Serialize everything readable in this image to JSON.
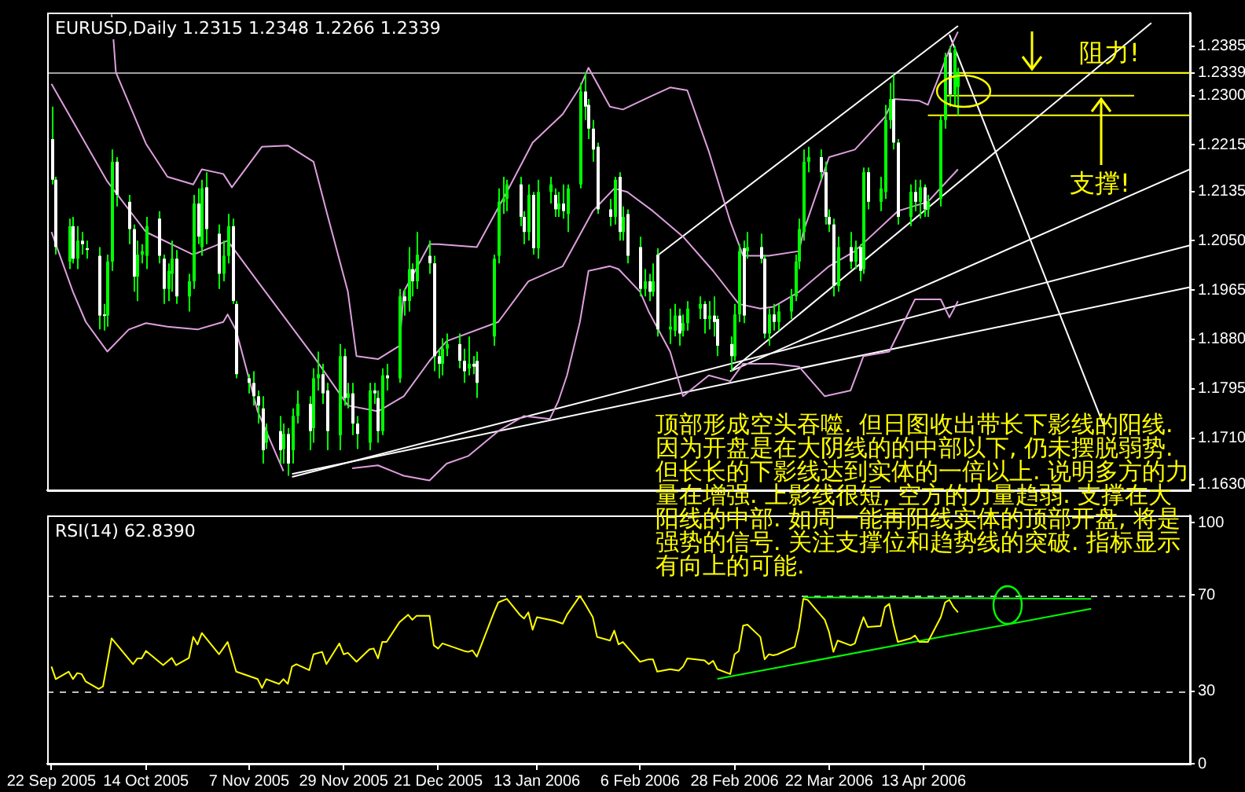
{
  "chart_data": [
    {
      "type": "candlestick",
      "title": "EURUSD,Daily 1.2315 1.2348 1.2266 1.2339",
      "color": "#00ff00",
      "legend": false,
      "tick_labels": "y",
      "xlim": [
        "2005-09-21",
        "2006-06-14"
      ],
      "ylim": [
        1.162,
        1.2443
      ],
      "yticks": [
        1.2385,
        1.2339,
        {
          "value": 1.23,
          "label": "1.2300"
        },
        1.2215,
        1.2135,
        {
          "value": 1.205,
          "label": "1.2050"
        },
        1.1965,
        {
          "value": 1.188,
          "label": "1.1880"
        },
        1.1795,
        {
          "value": 1.171,
          "label": "1.1710"
        },
        {
          "value": 1.163,
          "label": "1.1630"
        }
      ],
      "x": [
        "2005-09-22",
        "2005-09-23",
        "2005-09-26",
        "2005-09-27",
        "2005-09-28",
        "2005-09-29",
        "2005-09-30",
        "2005-10-03",
        "2005-10-04",
        "2005-10-05",
        "2005-10-06",
        "2005-10-07",
        "2005-10-10",
        "2005-10-11",
        "2005-10-12",
        "2005-10-13",
        "2005-10-14",
        "2005-10-17",
        "2005-10-18",
        "2005-10-19",
        "2005-10-20",
        "2005-10-21",
        "2005-10-24",
        "2005-10-25",
        "2005-10-26",
        "2005-10-27",
        "2005-10-28",
        "2005-10-31",
        "2005-11-01",
        "2005-11-02",
        "2005-11-03",
        "2005-11-04",
        "2005-11-07",
        "2005-11-08",
        "2005-11-09",
        "2005-11-10",
        "2005-11-11",
        "2005-11-14",
        "2005-11-15",
        "2005-11-16",
        "2005-11-17",
        "2005-11-18",
        "2005-11-21",
        "2005-11-22",
        "2005-11-23",
        "2005-11-24",
        "2005-11-25",
        "2005-11-28",
        "2005-11-29",
        "2005-11-30",
        "2005-12-01",
        "2005-12-02",
        "2005-12-05",
        "2005-12-06",
        "2005-12-07",
        "2005-12-08",
        "2005-12-09",
        "2005-12-12",
        "2005-12-13",
        "2005-12-14",
        "2005-12-15",
        "2005-12-16",
        "2005-12-19",
        "2005-12-20",
        "2005-12-21",
        "2005-12-22",
        "2005-12-23",
        "2005-12-26",
        "2005-12-27",
        "2005-12-28",
        "2005-12-29",
        "2005-12-30",
        "2006-01-03",
        "2006-01-04",
        "2006-01-05",
        "2006-01-06",
        "2006-01-09",
        "2006-01-10",
        "2006-01-11",
        "2006-01-12",
        "2006-01-13",
        "2006-01-16",
        "2006-01-17",
        "2006-01-18",
        "2006-01-19",
        "2006-01-20",
        "2006-01-23",
        "2006-01-24",
        "2006-01-25",
        "2006-01-26",
        "2006-01-27",
        "2006-01-30",
        "2006-01-31",
        "2006-02-01",
        "2006-02-02",
        "2006-02-03",
        "2006-02-06",
        "2006-02-07",
        "2006-02-08",
        "2006-02-09",
        "2006-02-10",
        "2006-02-13",
        "2006-02-14",
        "2006-02-15",
        "2006-02-16",
        "2006-02-17",
        "2006-02-20",
        "2006-02-21",
        "2006-02-22",
        "2006-02-23",
        "2006-02-24",
        "2006-02-27",
        "2006-02-28",
        "2006-03-01",
        "2006-03-02",
        "2006-03-03",
        "2006-03-06",
        "2006-03-07",
        "2006-03-08",
        "2006-03-09",
        "2006-03-10",
        "2006-03-13",
        "2006-03-14",
        "2006-03-15",
        "2006-03-16",
        "2006-03-17",
        "2006-03-20",
        "2006-03-21",
        "2006-03-22",
        "2006-03-23",
        "2006-03-24",
        "2006-03-27",
        "2006-03-28",
        "2006-03-29",
        "2006-03-30",
        "2006-03-31",
        "2006-04-03",
        "2006-04-04",
        "2006-04-05",
        "2006-04-06",
        "2006-04-07",
        "2006-04-10",
        "2006-04-11",
        "2006-04-12",
        "2006-04-13",
        "2006-04-14",
        "2006-04-17",
        "2006-04-18",
        "2006-04-19",
        "2006-04-20",
        "2006-04-21"
      ],
      "colors": [
        "#ffffff",
        "#ffffff",
        "#00ff00",
        "#ffffff",
        "#00ff00",
        "#ffffff",
        "#ffffff",
        "#ffffff",
        "#ffffff",
        "#00ff00",
        "#00ff00",
        "#ffffff",
        "#ffffff",
        "#ffffff",
        "#00ff00",
        "#00ff00",
        "#00ff00",
        "#ffffff",
        "#ffffff",
        "#00ff00",
        "#00ff00",
        "#ffffff",
        "#00ff00",
        "#00ff00",
        "#ffffff",
        "#00ff00",
        "#ffffff",
        "#ffffff",
        "#00ff00",
        "#00ff00",
        "#ffffff",
        "#ffffff",
        "#ffffff",
        "#ffffff",
        "#ffffff",
        "#ffffff",
        "#00ff00",
        "#ffffff",
        "#00ff00",
        "#ffffff",
        "#00ff00",
        "#00ff00",
        "#ffffff",
        "#00ff00",
        "#00ff00",
        "#ffffff",
        "#ffffff",
        "#00ff00",
        "#ffffff",
        "#00ff00",
        "#ffffff",
        "#ffffff",
        "#00ff00",
        "#ffffff",
        "#ffffff",
        "#00ff00",
        "#ffffff",
        "#00ff00",
        "#ffffff",
        "#00ff00",
        "#ffffff",
        "#00ff00",
        "#ffffff",
        "#ffffff",
        "#ffffff",
        "#00ff00",
        "#00ff00",
        "#ffffff",
        "#ffffff",
        "#00ff00",
        "#ffffff",
        "#ffffff",
        "#00ff00",
        "#00ff00",
        "#00ff00",
        "#00ff00",
        "#ffffff",
        "#ffffff",
        "#00ff00",
        "#ffffff",
        "#00ff00",
        "#00ff00",
        "#ffffff",
        "#00ff00",
        "#ffffff",
        "#00ff00",
        "#00ff00",
        "#ffffff",
        "#ffffff",
        "#ffffff",
        "#ffffff",
        "#ffffff",
        "#00ff00",
        "#ffffff",
        "#00ff00",
        "#ffffff",
        "#ffffff",
        "#00ff00",
        "#ffffff",
        "#00ff00",
        "#ffffff",
        "#00ff00",
        "#00ff00",
        "#ffffff",
        "#00ff00",
        "#00ff00",
        "#00ff00",
        "#ffffff",
        "#00ff00",
        "#ffffff",
        "#ffffff",
        "#ffffff",
        "#00ff00",
        "#00ff00",
        "#ffffff",
        "#00ff00",
        "#ffffff",
        "#ffffff",
        "#00ff00",
        "#ffffff",
        "#00ff00",
        "#00ff00",
        "#00ff00",
        "#00ff00",
        "#00ff00",
        "#00ff00",
        "#ffffff",
        "#ffffff",
        "#ffffff",
        "#ffffff",
        "#00ff00",
        "#ffffff",
        "#00ff00",
        "#ffffff",
        "#00ff00",
        "#ffffff",
        "#00ff00",
        "#00ff00",
        "#00ff00",
        "#ffffff",
        "#ffffff",
        "#00ff00",
        "#ffffff",
        "#00ff00",
        "#ffffff",
        "#00ff00",
        "#00ff00",
        "#00ff00",
        "#ffffff",
        "#00ff00",
        "#00ff00"
      ],
      "ohlc": [
        [
          1.2225,
          1.2281,
          1.2147,
          1.2155
        ],
        [
          1.2155,
          1.216,
          1.2026,
          1.2039
        ],
        [
          1.2014,
          1.2088,
          1.2001,
          1.2075
        ],
        [
          1.2075,
          1.2091,
          1.2011,
          1.2019
        ],
        [
          1.2019,
          1.2075,
          1.2001,
          1.205
        ],
        [
          1.205,
          1.2065,
          1.2026,
          1.2044
        ],
        [
          1.2037,
          1.205,
          1.2019,
          1.2034
        ],
        [
          1.2024,
          1.2039,
          1.1897,
          1.1921
        ],
        [
          1.1923,
          1.1941,
          1.1895,
          1.1921
        ],
        [
          1.1921,
          1.2026,
          1.1902,
          1.2014
        ],
        [
          1.2014,
          1.2207,
          1.1998,
          1.2186
        ],
        [
          1.2186,
          1.2194,
          1.2109,
          1.2129
        ],
        [
          1.2117,
          1.2129,
          1.2044,
          1.207
        ],
        [
          1.207,
          1.2078,
          1.1962,
          1.1988
        ],
        [
          1.1988,
          1.205,
          1.1946,
          1.2026
        ],
        [
          1.2026,
          1.2044,
          1.2011,
          1.2032
        ],
        [
          1.2024,
          1.2091,
          1.2001,
          1.2075
        ],
        [
          1.2088,
          1.2101,
          1.2011,
          1.2024
        ],
        [
          1.2019,
          1.2026,
          1.1941,
          1.1967
        ],
        [
          1.1967,
          1.2011,
          1.1946,
          1.1998
        ],
        [
          1.1993,
          1.205,
          1.1962,
          1.2019
        ],
        [
          1.2019,
          1.2034,
          1.1941,
          1.1954
        ],
        [
          1.1954,
          1.1993,
          1.1928,
          1.198
        ],
        [
          1.198,
          1.2129,
          1.1967,
          1.2114
        ],
        [
          1.2114,
          1.214,
          1.2044,
          1.2057
        ],
        [
          1.2039,
          1.2155,
          1.2024,
          1.214
        ],
        [
          1.2142,
          1.2168,
          1.2044,
          1.207
        ],
        [
          1.2062,
          1.2078,
          1.1967,
          1.1993
        ],
        [
          1.1993,
          1.205,
          1.198,
          1.2024
        ],
        [
          1.2024,
          1.2096,
          1.2011,
          1.2075
        ],
        [
          1.2075,
          1.2088,
          1.1941,
          1.1946
        ],
        [
          1.1941,
          1.1946,
          1.1813,
          1.182
        ],
        [
          1.1813,
          1.182,
          1.1787,
          1.1805
        ],
        [
          1.1805,
          1.1825,
          1.1766,
          1.1782
        ],
        [
          1.1782,
          1.1792,
          1.1735,
          1.1766
        ],
        [
          1.1761,
          1.1782,
          1.1666,
          1.1689
        ],
        [
          1.1702,
          1.1735,
          1.1691,
          1.1722
        ],
        [
          1.1722,
          1.1748,
          1.1666,
          1.1689
        ],
        [
          1.1691,
          1.1735,
          1.1666,
          1.1717
        ],
        [
          1.1717,
          1.1727,
          1.1645,
          1.1666
        ],
        [
          1.1689,
          1.1761,
          1.1666,
          1.1748
        ],
        [
          1.1748,
          1.1792,
          1.1735,
          1.1769
        ],
        [
          1.1769,
          1.1782,
          1.1689,
          1.1722
        ],
        [
          1.1727,
          1.183,
          1.1702,
          1.1813
        ],
        [
          1.1813,
          1.1859,
          1.1792,
          1.182
        ],
        [
          1.182,
          1.1838,
          1.1769,
          1.1787
        ],
        [
          1.1792,
          1.1805,
          1.1689,
          1.1722
        ],
        [
          1.1715,
          1.1872,
          1.1689,
          1.1851
        ],
        [
          1.1851,
          1.1864,
          1.1766,
          1.1779
        ],
        [
          1.1779,
          1.1805,
          1.1761,
          1.1787
        ],
        [
          1.1787,
          1.1805,
          1.1715,
          1.1735
        ],
        [
          1.1735,
          1.1748,
          1.1691,
          1.1717
        ],
        [
          1.1702,
          1.1805,
          1.1689,
          1.1792
        ],
        [
          1.1792,
          1.1805,
          1.1769,
          1.1787
        ],
        [
          1.1779,
          1.1792,
          1.1702,
          1.1722
        ],
        [
          1.1722,
          1.183,
          1.1715,
          1.1818
        ],
        [
          1.1818,
          1.1838,
          1.1792,
          1.1813
        ],
        [
          1.1813,
          1.1967,
          1.1805,
          1.1954
        ],
        [
          1.1954,
          1.1967,
          1.1921,
          1.1946
        ],
        [
          1.1946,
          1.2039,
          1.1928,
          1.2001
        ],
        [
          1.2001,
          1.2011,
          1.1954,
          1.198
        ],
        [
          1.198,
          1.2065,
          1.1967,
          1.2026
        ],
        [
          1.2024,
          1.205,
          1.1993,
          1.2011
        ],
        [
          1.2011,
          1.2024,
          1.1825,
          1.1851
        ],
        [
          1.1851,
          1.1864,
          1.1813,
          1.1838
        ],
        [
          1.1838,
          1.1882,
          1.1818,
          1.1864
        ],
        [
          1.1864,
          1.189,
          1.1851,
          1.1872
        ],
        [
          1.1872,
          1.189,
          1.183,
          1.1843
        ],
        [
          1.1843,
          1.1864,
          1.1805,
          1.1825
        ],
        [
          1.183,
          1.1885,
          1.1818,
          1.1838
        ],
        [
          1.1838,
          1.1851,
          1.182,
          1.1833
        ],
        [
          1.1843,
          1.1859,
          1.1779,
          1.1805
        ],
        [
          1.1885,
          1.2026,
          1.1869,
          1.2019
        ],
        [
          1.2024,
          1.214,
          1.2011,
          1.2117
        ],
        [
          1.2117,
          1.216,
          1.2096,
          1.2122
        ],
        [
          1.2122,
          1.2155,
          1.2101,
          1.2147
        ],
        [
          1.2147,
          1.216,
          1.2075,
          1.2091
        ],
        [
          1.2091,
          1.2101,
          1.2044,
          1.2065
        ],
        [
          1.2065,
          1.2147,
          1.205,
          1.2129
        ],
        [
          1.2129,
          1.2134,
          1.2026,
          1.2037
        ],
        [
          1.2037,
          1.2155,
          1.2019,
          1.2134
        ],
        [
          1.2134,
          1.216,
          1.2114,
          1.2147
        ],
        [
          1.2129,
          1.214,
          1.2091,
          1.2104
        ],
        [
          1.2104,
          1.2134,
          1.2091,
          1.2114
        ],
        [
          1.2114,
          1.2147,
          1.2088,
          1.2101
        ],
        [
          1.2096,
          1.2147,
          1.2065,
          1.214
        ],
        [
          1.2147,
          1.2322,
          1.214,
          1.2307
        ],
        [
          1.2307,
          1.234,
          1.2258,
          1.2281
        ],
        [
          1.2284,
          1.2294,
          1.2225,
          1.2243
        ],
        [
          1.2243,
          1.2258,
          1.2186,
          1.2207
        ],
        [
          1.2212,
          1.2219,
          1.2096,
          1.2104
        ],
        [
          1.2104,
          1.2122,
          1.2075,
          1.2091
        ],
        [
          1.2091,
          1.216,
          1.2078,
          1.2155
        ],
        [
          1.216,
          1.2168,
          1.205,
          1.2065
        ],
        [
          1.2065,
          1.2109,
          1.205,
          1.2091
        ],
        [
          1.2096,
          1.2104,
          1.2011,
          1.2024
        ],
        [
          1.2039,
          1.2057,
          1.1954,
          1.1967
        ],
        [
          1.1967,
          1.2001,
          1.1954,
          1.198
        ],
        [
          1.198,
          1.1993,
          1.1946,
          1.1962
        ],
        [
          1.1962,
          1.2011,
          1.1954,
          1.198
        ],
        [
          1.2026,
          1.2037,
          1.1885,
          1.1897
        ],
        [
          1.1897,
          1.1933,
          1.1872,
          1.1902
        ],
        [
          1.1895,
          1.1941,
          1.1885,
          1.1921
        ],
        [
          1.1921,
          1.1933,
          1.1869,
          1.189
        ],
        [
          1.1895,
          1.1923,
          1.1885,
          1.1908
        ],
        [
          1.1908,
          1.1946,
          1.1895,
          1.1933
        ],
        [
          1.1933,
          1.1954,
          1.1915,
          1.1941
        ],
        [
          1.1941,
          1.1946,
          1.189,
          1.1915
        ],
        [
          1.1915,
          1.1946,
          1.1897,
          1.1921
        ],
        [
          1.1921,
          1.1954,
          1.1885,
          1.191
        ],
        [
          1.1915,
          1.1921,
          1.1851,
          1.1869
        ],
        [
          1.1872,
          1.1885,
          1.1825,
          1.1851
        ],
        [
          1.1851,
          1.1941,
          1.1843,
          1.1923
        ],
        [
          1.1923,
          1.2044,
          1.191,
          1.2032
        ],
        [
          1.2037,
          1.205,
          1.1908,
          1.1921
        ],
        [
          1.2032,
          1.2065,
          1.2019,
          1.2039
        ],
        [
          1.2039,
          1.2062,
          1.2011,
          1.2019
        ],
        [
          1.2019,
          1.2026,
          1.1882,
          1.189
        ],
        [
          1.189,
          1.1933,
          1.1869,
          1.1923
        ],
        [
          1.1923,
          1.1941,
          1.1895,
          1.191
        ],
        [
          1.191,
          1.1941,
          1.1895,
          1.1928
        ],
        [
          1.1928,
          1.1967,
          1.1915,
          1.1954
        ],
        [
          1.1954,
          1.2026,
          1.1946,
          1.2014
        ],
        [
          1.2014,
          1.2088,
          1.2001,
          1.207
        ],
        [
          1.2065,
          1.2207,
          1.205,
          1.2186
        ],
        [
          1.2186,
          1.2212,
          1.2168,
          1.2194
        ],
        [
          1.2194,
          1.2207,
          1.2155,
          1.2168
        ],
        [
          1.2168,
          1.2186,
          1.2078,
          1.2091
        ],
        [
          1.2091,
          1.2104,
          1.2065,
          1.2078
        ],
        [
          1.2078,
          1.2088,
          1.1954,
          1.1972
        ],
        [
          1.1972,
          1.2057,
          1.1962,
          1.2039
        ],
        [
          1.2039,
          1.2065,
          1.2001,
          1.2014
        ],
        [
          1.2014,
          1.205,
          1.2001,
          1.2039
        ],
        [
          1.2039,
          1.2044,
          1.198,
          1.1998
        ],
        [
          1.2001,
          1.2176,
          1.1993,
          1.2168
        ],
        [
          1.2168,
          1.2176,
          1.2104,
          1.2117
        ],
        [
          1.2117,
          1.216,
          1.2101,
          1.214
        ],
        [
          1.2134,
          1.2284,
          1.2122,
          1.2258
        ],
        [
          1.2258,
          1.2322,
          1.2243,
          1.2294
        ],
        [
          1.2294,
          1.2335,
          1.2207,
          1.2219
        ],
        [
          1.2219,
          1.2225,
          1.2078,
          1.2091
        ],
        [
          1.2091,
          1.2147,
          1.2075,
          1.2134
        ],
        [
          1.2134,
          1.2155,
          1.2101,
          1.2117
        ],
        [
          1.2117,
          1.2155,
          1.2088,
          1.2142
        ],
        [
          1.2142,
          1.2147,
          1.2091,
          1.2104
        ],
        [
          1.2104,
          1.2129,
          1.2091,
          1.2117
        ],
        [
          1.2122,
          1.2265,
          1.2109,
          1.2258
        ],
        [
          1.2258,
          1.2374,
          1.2243,
          1.2366
        ],
        [
          1.2374,
          1.2385,
          1.2281,
          1.2302
        ],
        [
          1.2302,
          1.2385,
          1.2281,
          1.2379
        ],
        [
          1.2315,
          1.2348,
          1.2266,
          1.2339
        ]
      ],
      "series": [
        {
          "type": "line",
          "color": "#dda0dd",
          "x": [
            "2005-10-06",
            "2005-10-07",
            "2005-10-14",
            "2005-10-19",
            "2005-10-25",
            "2005-10-27",
            "2005-11-01",
            "2005-11-03",
            "2005-11-10",
            "2005-11-16",
            "2005-11-22",
            "2005-11-25",
            "2005-11-30",
            "2005-12-02",
            "2005-12-07",
            "2005-12-12",
            "2005-12-13",
            "2005-12-19",
            "2005-12-21",
            "2005-12-30",
            "2006-01-06",
            "2006-01-12",
            "2006-01-19",
            "2006-01-23",
            "2006-01-25",
            "2006-01-30",
            "2006-02-02",
            "2006-02-08",
            "2006-02-13",
            "2006-02-17",
            "2006-02-22",
            "2006-02-27",
            "2006-03-02",
            "2006-03-08",
            "2006-03-15",
            "2006-03-16",
            "2006-03-22",
            "2006-03-28",
            "2006-04-04",
            "2006-04-06",
            "2006-04-12",
            "2006-04-14",
            "2006-04-19",
            "2006-04-21"
          ],
          "values": [
            1.244,
            1.234,
            1.2217,
            1.216,
            1.2147,
            1.2173,
            1.2165,
            1.2142,
            1.2212,
            1.2214,
            1.2186,
            1.2101,
            1.1962,
            1.1851,
            1.1846,
            1.1869,
            1.1962,
            1.2044,
            1.2044,
            1.2039,
            1.2134,
            1.2219,
            1.2268,
            1.2314,
            1.2348,
            1.2281,
            1.2276,
            1.2297,
            1.2314,
            1.2309,
            1.2204,
            1.2083,
            1.2024,
            1.2024,
            1.2032,
            1.2065,
            1.2194,
            1.2207,
            1.2263,
            1.2294,
            1.2291,
            1.2284,
            1.2379,
            1.241
          ]
        },
        {
          "type": "line",
          "color": "#dda0dd",
          "x": [
            "2005-09-22",
            "2005-10-05",
            "2005-10-14",
            "2005-10-25",
            "2005-11-02",
            "2005-11-09",
            "2005-11-22",
            "2005-11-30",
            "2005-12-07",
            "2005-12-13",
            "2005-12-19",
            "2005-12-23",
            "2006-01-04",
            "2006-01-11",
            "2006-01-19",
            "2006-01-26",
            "2006-01-31",
            "2006-02-03",
            "2006-02-09",
            "2006-02-16",
            "2006-02-23",
            "2006-03-01",
            "2006-03-06",
            "2006-03-09",
            "2006-03-15",
            "2006-03-22",
            "2006-03-28",
            "2006-04-07",
            "2006-04-14",
            "2006-04-21"
          ],
          "values": [
            1.232,
            1.2152,
            1.2065,
            1.2026,
            1.205,
            1.198,
            1.1851,
            1.1766,
            1.1756,
            1.1782,
            1.1843,
            1.1877,
            1.191,
            1.198,
            1.2006,
            1.2101,
            1.214,
            1.2134,
            1.2101,
            1.2057,
            1.1998,
            1.1941,
            1.1933,
            1.1936,
            1.1962,
            1.2006,
            1.2032,
            1.2101,
            1.2117,
            1.2173
          ]
        },
        {
          "type": "line",
          "color": "#dda0dd",
          "x": [
            "2005-09-22",
            "2005-09-27",
            "2005-09-30",
            "2005-10-05",
            "2005-10-10",
            "2005-10-14",
            "2005-10-19",
            "2005-10-26",
            "2005-11-01",
            "2005-11-02",
            "2005-11-04",
            "2005-11-09",
            "2005-11-15",
            "2005-11-16",
            "2005-11-22",
            "2005-11-29",
            "2005-12-01",
            "2005-12-07",
            "2005-12-13",
            "2005-12-19",
            "2005-12-23",
            "2005-12-28",
            "2006-01-04",
            "2006-01-10",
            "2006-01-16",
            "2006-01-18",
            "2006-01-20",
            "2006-01-23",
            "2006-01-25",
            "2006-01-30",
            "2006-02-01",
            "2006-02-06",
            "2006-02-08",
            "2006-02-13",
            "2006-02-16",
            "2006-02-22",
            "2006-02-27",
            "2006-03-02",
            "2006-03-09",
            "2006-03-15",
            "2006-03-21",
            "2006-03-27",
            "2006-03-30",
            "2006-04-05",
            "2006-04-11",
            "2006-04-17",
            "2006-04-19",
            "2006-04-21"
          ],
          "values": [
            1.2065,
            1.1962,
            1.191,
            1.1859,
            1.1897,
            1.1908,
            1.1902,
            1.1897,
            1.191,
            1.1923,
            1.1895,
            1.1756,
            1.1653,
            null,
            null,
            null,
            1.1658,
            1.1663,
            1.1645,
            1.1637,
            1.1666,
            1.1679,
            1.1722,
            1.1748,
            1.1743,
            1.1774,
            1.1818,
            1.191,
            1.1998,
            1.2006,
            1.2001,
            1.1962,
            1.1928,
            1.1859,
            1.1782,
            1.1818,
            1.1808,
            1.1838,
            1.1838,
            1.1833,
            1.1782,
            1.1792,
            1.1851,
            1.1859,
            1.1949,
            1.1949,
            1.1918,
            1.1946
          ]
        },
        {
          "type": "line",
          "color": "#ffffff",
          "x": [
            "2006-02-10",
            "2006-04-21"
          ],
          "values": [
            1.2024,
            1.242
          ]
        },
        {
          "type": "line",
          "color": "#ffffff",
          "x": [
            "2006-04-19",
            "2006-05-25"
          ],
          "values": [
            1.2405,
            1.173
          ]
        },
        {
          "type": "line",
          "color": "#ffffff",
          "x": [
            "2006-02-27",
            "2006-06-05"
          ],
          "values": [
            1.1825,
            1.2425
          ]
        },
        {
          "type": "line",
          "color": "#ffffff",
          "x": [
            "2006-02-27",
            "2006-06-14"
          ],
          "values": [
            1.1825,
            1.2173
          ]
        },
        {
          "type": "line",
          "color": "#ffffff",
          "x": [
            "2005-11-17",
            "2006-06-14"
          ],
          "values": [
            1.1643,
            1.2042
          ]
        },
        {
          "type": "line",
          "color": "#ffffff",
          "x": [
            "2005-11-17",
            "2006-06-14"
          ],
          "values": [
            1.1648,
            1.197
          ]
        },
        {
          "type": "line",
          "color": "#ffff00",
          "x": [
            "2006-04-20",
            "2006-06-14"
          ],
          "values": [
            1.2339,
            1.2339
          ]
        },
        {
          "type": "line",
          "color": "#ffff00",
          "x": [
            "2006-04-18",
            "2006-06-01"
          ],
          "values": [
            1.23,
            1.23
          ]
        },
        {
          "type": "line",
          "color": "#ffff00",
          "x": [
            "2006-04-14",
            "2006-06-14"
          ],
          "values": [
            1.2266,
            1.2266
          ]
        }
      ],
      "ref_lines": [
        {
          "axis": "y",
          "value": 1.2339,
          "color": "#a0a0a0"
        }
      ],
      "annotations": [
        {
          "text": "阻力!",
          "x": "2006-05-08",
          "y": 1.2339
        },
        {
          "text": "支撑!",
          "x": "2006-05-24",
          "y": 1.23
        },
        "顶部形成空头吞噬. 但日图收出带长下影线的阳线. 因为开盘是在大阴线的的中部以下, 仍未摆脱弱势. 但长长的下影线达到实体的一倍以上. 说明多方的力量在增强. 上影线很短, 空方的力量趋弱. 支撑在大阳线的中部. 如周一能再阳线实体的顶部开盘, 将是强势的信号. 关注支撑位和趋势线的突破. 指标显示有向上的可能."
      ]
    },
    {
      "type": "line",
      "title": "RSI(14) 62.8390",
      "legend": false,
      "xlim": [
        "2005-09-21",
        "2006-06-14"
      ],
      "ylim": [
        0,
        103
      ],
      "yticks": [
        0,
        30,
        70,
        100
      ],
      "xticks": [
        {
          "value": "2005-09-22",
          "label": "22 Sep 2005"
        },
        {
          "value": "2005-10-14",
          "label": "14 Oct 2005"
        },
        {
          "value": "2005-11-07",
          "label": "7 Nov 2005"
        },
        {
          "value": "2005-11-29",
          "label": "29 Nov 2005"
        },
        {
          "value": "2005-12-21",
          "label": "21 Dec 2005"
        },
        {
          "value": "2006-01-13",
          "label": "13 Jan 2006"
        },
        {
          "value": "2006-02-06",
          "label": "6 Feb 2006"
        },
        {
          "value": "2006-02-28",
          "label": "28 Feb 2006"
        },
        {
          "value": "2006-03-22",
          "label": "22 Mar 2006"
        },
        {
          "value": "2006-04-13",
          "label": "13 Apr 2006"
        }
      ],
      "series": [
        {
          "color": "#ffff00",
          "x": [
            "2005-09-22",
            "2005-09-23",
            "2005-09-26",
            "2005-09-27",
            "2005-09-28",
            "2005-09-29",
            "2005-09-30",
            "2005-10-03",
            "2005-10-04",
            "2005-10-06",
            "2005-10-11",
            "2005-10-12",
            "2005-10-13",
            "2005-10-14",
            "2005-10-18",
            "2005-10-20",
            "2005-10-21",
            "2005-10-24",
            "2005-10-25",
            "2005-10-26",
            "2005-10-27",
            "2005-10-31",
            "2005-11-02",
            "2005-11-04",
            "2005-11-09",
            "2005-11-10",
            "2005-11-11",
            "2005-11-14",
            "2005-11-15",
            "2005-11-16",
            "2005-11-17",
            "2005-11-18",
            "2005-11-21",
            "2005-11-22",
            "2005-11-24",
            "2005-11-25",
            "2005-11-28",
            "2005-11-29",
            "2005-11-30",
            "2005-12-02",
            "2005-12-05",
            "2005-12-06",
            "2005-12-07",
            "2005-12-08",
            "2005-12-09",
            "2005-12-12",
            "2005-12-14",
            "2005-12-15",
            "2005-12-16",
            "2005-12-19",
            "2005-12-20",
            "2005-12-21",
            "2005-12-22",
            "2005-12-27",
            "2005-12-28",
            "2005-12-29",
            "2005-12-30",
            "2006-01-03",
            "2006-01-04",
            "2006-01-06",
            "2006-01-09",
            "2006-01-10",
            "2006-01-11",
            "2006-01-12",
            "2006-01-13",
            "2006-01-17",
            "2006-01-19",
            "2006-01-20",
            "2006-01-23",
            "2006-01-24",
            "2006-01-26",
            "2006-01-27",
            "2006-01-30",
            "2006-01-31",
            "2006-02-01",
            "2006-02-02",
            "2006-02-06",
            "2006-02-08",
            "2006-02-09",
            "2006-02-10",
            "2006-02-13",
            "2006-02-15",
            "2006-02-16",
            "2006-02-17",
            "2006-02-21",
            "2006-02-22",
            "2006-02-23",
            "2006-02-24",
            "2006-02-27",
            "2006-02-28",
            "2006-03-01",
            "2006-03-02",
            "2006-03-03",
            "2006-03-06",
            "2006-03-07",
            "2006-03-08",
            "2006-03-09",
            "2006-03-10",
            "2006-03-14",
            "2006-03-15",
            "2006-03-16",
            "2006-03-17",
            "2006-03-21",
            "2006-03-22",
            "2006-03-23",
            "2006-03-24",
            "2006-03-27",
            "2006-03-28",
            "2006-03-29",
            "2006-03-30",
            "2006-03-31",
            "2006-04-03",
            "2006-04-04",
            "2006-04-05",
            "2006-04-06",
            "2006-04-07",
            "2006-04-10",
            "2006-04-11",
            "2006-04-12",
            "2006-04-14",
            "2006-04-17",
            "2006-04-18",
            "2006-04-19",
            "2006-04-20",
            "2006-04-21"
          ],
          "values": [
            40.3,
            35.1,
            38.2,
            35.1,
            37.6,
            37.2,
            34.1,
            31.0,
            32.1,
            52.0,
            41.3,
            43.7,
            43.7,
            46.8,
            40.9,
            43.9,
            40.9,
            43.9,
            52.6,
            49.5,
            54.2,
            45.4,
            50.5,
            38.2,
            35.1,
            31.4,
            35.1,
            33.1,
            35.1,
            33.1,
            40.3,
            41.3,
            38.8,
            45.4,
            46.4,
            41.3,
            49.9,
            45.4,
            46.0,
            42.3,
            47.4,
            47.8,
            43.7,
            50.5,
            50.5,
            58.7,
            61.8,
            59.7,
            61.4,
            61.4,
            49.1,
            47.8,
            49.9,
            46.8,
            46.4,
            47.0,
            44.4,
            62.8,
            66.9,
            68.4,
            61.8,
            60.2,
            62.8,
            55.6,
            60.8,
            59.3,
            58.1,
            61.8,
            69.6,
            66.9,
            60.8,
            52.6,
            51.1,
            55.2,
            49.5,
            50.5,
            42.3,
            43.3,
            43.3,
            38.2,
            39.2,
            38.6,
            40.3,
            43.7,
            42.9,
            41.3,
            42.7,
            39.2,
            37.2,
            45.4,
            46.8,
            57.3,
            57.7,
            52.6,
            43.3,
            45.4,
            45.0,
            45.4,
            48.5,
            56.1,
            68.4,
            68.0,
            59.7,
            54.6,
            46.4,
            51.1,
            49.1,
            49.9,
            55.6,
            60.8,
            56.7,
            57.1,
            64.9,
            66.3,
            57.7,
            50.5,
            52.0,
            53.2,
            50.5,
            50.5,
            60.8,
            66.9,
            68.0,
            64.9,
            62.8
          ]
        },
        {
          "color": "#00ff00",
          "x": [
            "2006-02-24",
            "2006-05-22"
          ],
          "values": [
            35.2,
            64.3
          ]
        },
        {
          "color": "#00ff00",
          "x": [
            "2006-03-16",
            "2006-05-22"
          ],
          "values": [
            69.0,
            68.4
          ]
        }
      ],
      "ref_lines": [
        {
          "axis": "y",
          "value": 70,
          "color": "#c0c0c0",
          "line_style": "dashed"
        },
        {
          "axis": "y",
          "value": 30,
          "color": "#c0c0c0",
          "line_style": "dashed"
        }
      ]
    }
  ]
}
